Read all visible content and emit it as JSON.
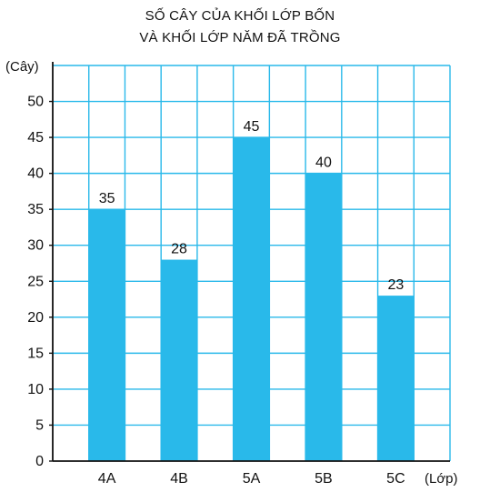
{
  "chart_data": {
    "type": "bar",
    "title_lines": [
      "SỐ CÂY CỦA KHỐI LỚP BỐN",
      "VÀ KHỐI LỚP NĂM ĐÃ TRỒNG"
    ],
    "ylabel": "(Cây)",
    "xlabel": "(Lớp)",
    "categories": [
      "4A",
      "4B",
      "5A",
      "5B",
      "5C"
    ],
    "values": [
      35,
      28,
      45,
      40,
      23
    ],
    "data_labels": [
      "35",
      "28",
      "45",
      "40",
      "23"
    ],
    "ylim": [
      0,
      55
    ],
    "yticks": [
      0,
      5,
      10,
      15,
      20,
      25,
      30,
      35,
      40,
      45,
      50
    ],
    "ytick_labels": [
      "0",
      "5",
      "10",
      "15",
      "20",
      "25",
      "30",
      "35",
      "40",
      "45",
      "50"
    ],
    "grid": true,
    "colors": {
      "bar": "#29b9ea",
      "grid": "#29b9ea",
      "axis": "#111111"
    }
  }
}
